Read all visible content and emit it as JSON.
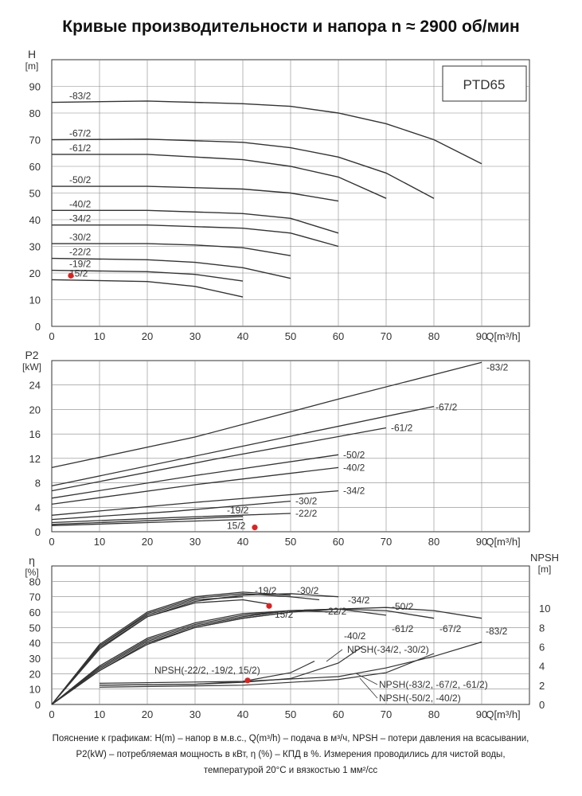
{
  "title": "Кривые производительности и напора n ≈ 2900 об/мин",
  "model": "PTD65",
  "footnote": {
    "line1": "Пояснение к графикам: H(m) – напор в м.в.с., Q(m³/h) – подача в м³/ч, NPSH – потери давления на всасывании,",
    "line2": "P2(kW) – потребляемая мощность в кВт, η (%) – КПД в %. Измерения проводились для чистой воды,",
    "line3": "температурой 20°C и вязкостью 1 мм²/сс"
  },
  "chart_data": [
    {
      "id": "head",
      "type": "line",
      "ylabel": "H",
      "yunit": "[m]",
      "xlabel": "Q[m³/h]",
      "xlim": [
        0,
        100
      ],
      "ylim": [
        0,
        100
      ],
      "xticks": [
        0,
        10,
        20,
        30,
        40,
        50,
        60,
        70,
        80,
        90
      ],
      "yticks": [
        0,
        10,
        20,
        30,
        40,
        50,
        60,
        70,
        80,
        90
      ],
      "grid": true,
      "series": [
        {
          "name": "-83/2",
          "x": [
            0,
            20,
            40,
            50,
            60,
            70,
            80,
            90
          ],
          "y": [
            84,
            84.5,
            83.5,
            82.5,
            80,
            76,
            70,
            61
          ]
        },
        {
          "name": "-67/2",
          "x": [
            0,
            20,
            40,
            50,
            60,
            70,
            80
          ],
          "y": [
            70,
            70.2,
            69,
            67,
            63.5,
            57.5,
            48
          ]
        },
        {
          "name": "-61/2",
          "x": [
            0,
            20,
            40,
            50,
            60,
            70
          ],
          "y": [
            64.5,
            64.5,
            62.5,
            60,
            56,
            48
          ]
        },
        {
          "name": "-50/2",
          "x": [
            0,
            20,
            40,
            50,
            60
          ],
          "y": [
            52.5,
            52.5,
            51.5,
            50,
            47
          ]
        },
        {
          "name": "-40/2",
          "x": [
            0,
            20,
            40,
            50,
            60
          ],
          "y": [
            43.5,
            43.5,
            42.3,
            40.5,
            35
          ]
        },
        {
          "name": "-34/2",
          "x": [
            0,
            20,
            40,
            50,
            60
          ],
          "y": [
            38,
            38,
            36.8,
            35,
            30
          ]
        },
        {
          "name": "-30/2",
          "x": [
            0,
            20,
            30,
            40,
            50
          ],
          "y": [
            31,
            31,
            30.5,
            29.5,
            26.5
          ]
        },
        {
          "name": "-22/2",
          "x": [
            0,
            20,
            30,
            40,
            50
          ],
          "y": [
            25.5,
            25,
            24,
            22,
            18
          ]
        },
        {
          "name": "-19/2",
          "x": [
            0,
            20,
            30,
            40
          ],
          "y": [
            21,
            20.5,
            19.5,
            17
          ]
        },
        {
          "name": "15/2",
          "x": [
            0,
            20,
            30,
            40
          ],
          "y": [
            17.5,
            16.8,
            15,
            11
          ]
        }
      ],
      "marker": {
        "label": "15/2",
        "x": 4,
        "y": 19
      }
    },
    {
      "id": "power",
      "type": "line",
      "ylabel": "P2",
      "yunit": "[kW]",
      "xlabel": "Q[m³/h]",
      "xlim": [
        0,
        100
      ],
      "ylim": [
        0,
        28
      ],
      "xticks": [
        0,
        10,
        20,
        30,
        40,
        50,
        60,
        70,
        80,
        90
      ],
      "yticks": [
        0,
        4,
        8,
        12,
        16,
        20,
        24
      ],
      "grid": true,
      "series": [
        {
          "name": "-83/2",
          "x": [
            0,
            30,
            60,
            90
          ],
          "y": [
            10.5,
            15.5,
            21.7,
            27.7
          ]
        },
        {
          "name": "-67/2",
          "x": [
            0,
            40,
            80
          ],
          "y": [
            7.5,
            14,
            20.5
          ]
        },
        {
          "name": "-61/2",
          "x": [
            0,
            35,
            70
          ],
          "y": [
            6.7,
            12,
            17
          ]
        },
        {
          "name": "-50/2",
          "x": [
            0,
            30,
            60
          ],
          "y": [
            5.5,
            9.2,
            12.6
          ]
        },
        {
          "name": "-40/2",
          "x": [
            0,
            30,
            60
          ],
          "y": [
            4.5,
            7.7,
            10.5
          ]
        },
        {
          "name": "-34/2",
          "x": [
            0,
            30,
            60
          ],
          "y": [
            2.7,
            4.8,
            6.7
          ]
        },
        {
          "name": "-30/2",
          "x": [
            0,
            25,
            50
          ],
          "y": [
            2,
            3.3,
            5
          ]
        },
        {
          "name": "-22/2",
          "x": [
            0,
            25,
            50
          ],
          "y": [
            1.5,
            2.3,
            3
          ]
        },
        {
          "name": "-19/2",
          "x": [
            0,
            20,
            40
          ],
          "y": [
            1.2,
            1.8,
            2.5
          ]
        },
        {
          "name": "15/2",
          "x": [
            0,
            20,
            40
          ],
          "y": [
            1,
            1.5,
            2
          ]
        }
      ],
      "marker": {
        "label": "15/2",
        "x": 42.5,
        "y": 0.7
      }
    },
    {
      "id": "efficiency",
      "type": "line",
      "ylabel": "η",
      "yunit": "[%]",
      "y2label": "NPSH",
      "y2unit": "[m]",
      "xlabel": "Q[m³/h]",
      "xlim": [
        0,
        100
      ],
      "ylim": [
        0,
        90
      ],
      "y2lim": [
        0,
        14.4
      ],
      "xticks": [
        0,
        10,
        20,
        30,
        40,
        50,
        60,
        70,
        80,
        90
      ],
      "yticks": [
        0,
        10,
        20,
        30,
        40,
        50,
        60,
        70,
        80
      ],
      "y2ticks": [
        0,
        2,
        4,
        6,
        8,
        10
      ],
      "grid": true,
      "series": [
        {
          "name": "-19/2",
          "x": [
            0,
            10,
            20,
            30,
            40
          ],
          "y": [
            0,
            38,
            58,
            68,
            70
          ]
        },
        {
          "name": "15/2",
          "x": [
            0,
            10,
            20,
            30,
            40,
            46
          ],
          "y": [
            0,
            37,
            57,
            66,
            68,
            65
          ]
        },
        {
          "name": "-30/2",
          "x": [
            0,
            10,
            20,
            30,
            40,
            50
          ],
          "y": [
            0,
            39,
            60,
            70,
            73,
            71
          ]
        },
        {
          "name": "-22/2",
          "x": [
            0,
            10,
            20,
            30,
            40,
            50,
            56
          ],
          "y": [
            0,
            38,
            59,
            69,
            72,
            70,
            68
          ]
        },
        {
          "name": "-34/2",
          "x": [
            0,
            10,
            20,
            30,
            40,
            50,
            60
          ],
          "y": [
            0,
            36,
            57,
            67,
            71,
            72,
            70
          ]
        },
        {
          "name": "-40/2",
          "x": [
            0,
            10,
            20,
            30,
            40,
            50,
            60
          ],
          "y": [
            0,
            24,
            42,
            52,
            58,
            61,
            60
          ]
        },
        {
          "name": "-50/2",
          "x": [
            0,
            10,
            20,
            30,
            40,
            50,
            60
          ],
          "y": [
            0,
            25,
            43,
            53,
            59,
            61,
            62
          ]
        },
        {
          "name": "-61/2",
          "x": [
            0,
            10,
            20,
            30,
            40,
            50,
            60,
            70
          ],
          "y": [
            0,
            23,
            41,
            51,
            57,
            61,
            62,
            58
          ]
        },
        {
          "name": "-67/2",
          "x": [
            0,
            10,
            20,
            30,
            40,
            50,
            60,
            70,
            80
          ],
          "y": [
            0,
            22,
            40,
            50,
            56,
            60,
            62,
            61,
            56
          ]
        },
        {
          "name": "-83/2",
          "x": [
            0,
            10,
            20,
            30,
            40,
            50,
            60,
            70,
            80,
            90
          ],
          "y": [
            0,
            22,
            39,
            50,
            56,
            60,
            62,
            63,
            61,
            56
          ]
        }
      ],
      "npsh_series": [
        {
          "name": "NPSH(-22/2, -19/2, 15/2)",
          "x": [
            10,
            30,
            40,
            50,
            55
          ],
          "y": [
            2,
            2.1,
            2.4,
            3.3,
            4.5
          ]
        },
        {
          "name": "NPSH(-34/2, -30/2)",
          "x": [
            10,
            30,
            40,
            50,
            60,
            65
          ],
          "y": [
            2,
            2.1,
            2.3,
            2.7,
            4.3,
            6
          ]
        },
        {
          "name": "NPSH(-83/2, -67/2, -61/2)",
          "x": [
            10,
            40,
            60,
            70,
            80,
            90
          ],
          "y": [
            2.2,
            2.4,
            2.9,
            3.8,
            5,
            6.5
          ]
        },
        {
          "name": "NPSH(-50/2, -40/2)",
          "x": [
            10,
            40,
            60,
            70,
            80
          ],
          "y": [
            1.8,
            2,
            2.6,
            3.3,
            5.3
          ]
        }
      ],
      "marker": {
        "label": "15/2",
        "x": 45.5,
        "y": 64
      },
      "npsh_marker": {
        "x": 41,
        "y": 2.5
      }
    }
  ]
}
